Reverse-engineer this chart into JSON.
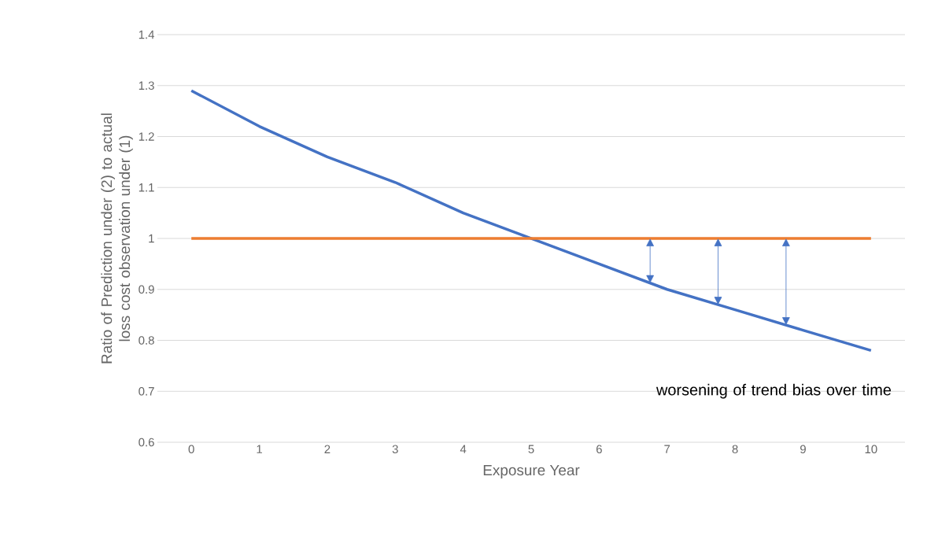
{
  "chart_data": {
    "type": "line",
    "xlabel": "Exposure Year",
    "ylabel": "Ratio of Prediction under (2) to actual loss cost observation under (1)",
    "categories": [
      "0",
      "1",
      "2",
      "3",
      "4",
      "5",
      "6",
      "7",
      "8",
      "9",
      "10"
    ],
    "series": [
      {
        "color": "#4472c4",
        "values": [
          1.29,
          1.22,
          1.16,
          1.11,
          1.05,
          1.0,
          0.95,
          0.9,
          0.86,
          0.82,
          0.78
        ]
      },
      {
        "color": "#ed7d31",
        "values": [
          1,
          1,
          1,
          1,
          1,
          1,
          1,
          1,
          1,
          1,
          1
        ]
      }
    ],
    "ylim": [
      0.6,
      1.4
    ],
    "yticks": [
      0.6,
      0.7,
      0.8,
      0.9,
      1,
      1.1,
      1.2,
      1.3,
      1.4
    ],
    "grid": "y",
    "annotations": [
      "worsening of trend bias over time"
    ]
  }
}
